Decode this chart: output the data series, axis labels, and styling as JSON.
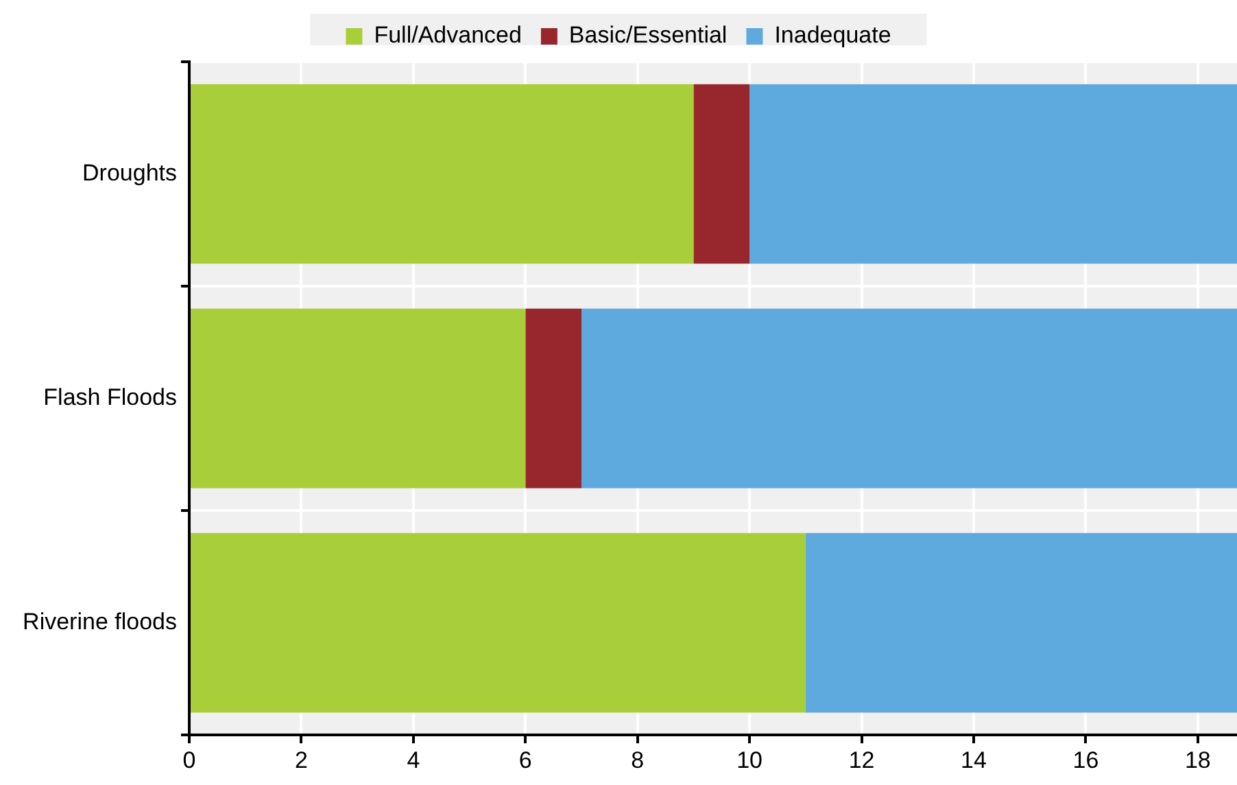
{
  "chart_data": {
    "type": "bar",
    "orientation": "horizontal",
    "stacked": true,
    "categories": [
      "Droughts",
      "Flash Floods",
      "Riverine floods"
    ],
    "series": [
      {
        "name": "Full/Advanced",
        "color": "#a8ce3a",
        "values": [
          9,
          6,
          11
        ]
      },
      {
        "name": "Basic/Essential",
        "color": "#98272d",
        "values": [
          1,
          1,
          0
        ]
      },
      {
        "name": "Inadequate",
        "color": "#5ea9dd",
        "values": [
          8.7,
          11.7,
          7.7
        ]
      }
    ],
    "xlim": [
      0,
      18.7
    ],
    "xticks": [
      0,
      2,
      4,
      6,
      8,
      10,
      12,
      14,
      16,
      18
    ],
    "grid": true,
    "legend": "top"
  }
}
